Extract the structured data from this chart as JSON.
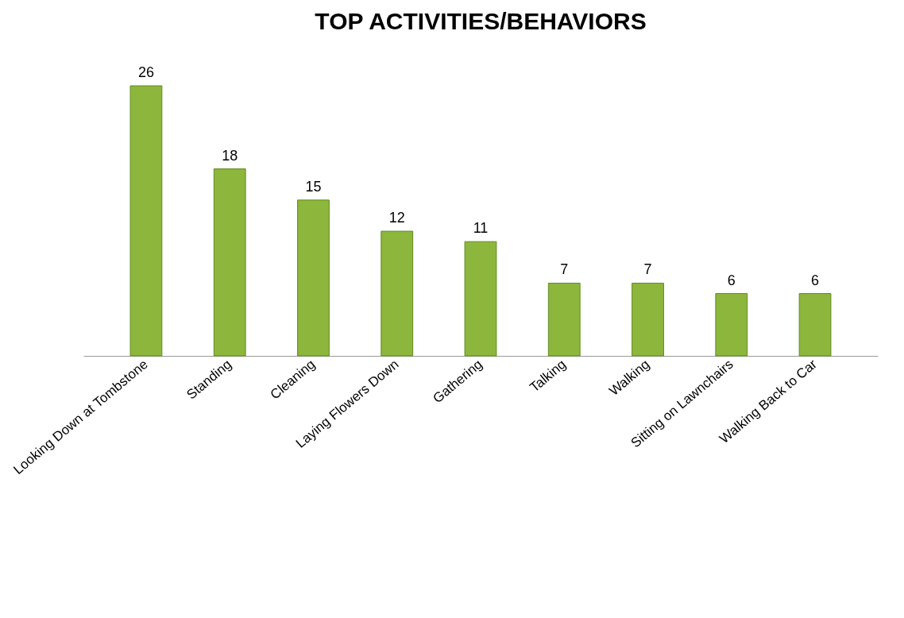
{
  "chart_data": {
    "type": "bar",
    "title": "TOP ACTIVITIES/BEHAVIORS",
    "categories": [
      "Looking Down at Tombstone",
      "Standing",
      "Cleaning",
      "Laying Flowers Down",
      "Gathering",
      "Talking",
      "Walking",
      "Sitting on Lawnchairs",
      "Walking Back to Car"
    ],
    "values": [
      26,
      18,
      15,
      12,
      11,
      7,
      7,
      6,
      6
    ],
    "color": "#8db63c",
    "data_labels": true
  }
}
